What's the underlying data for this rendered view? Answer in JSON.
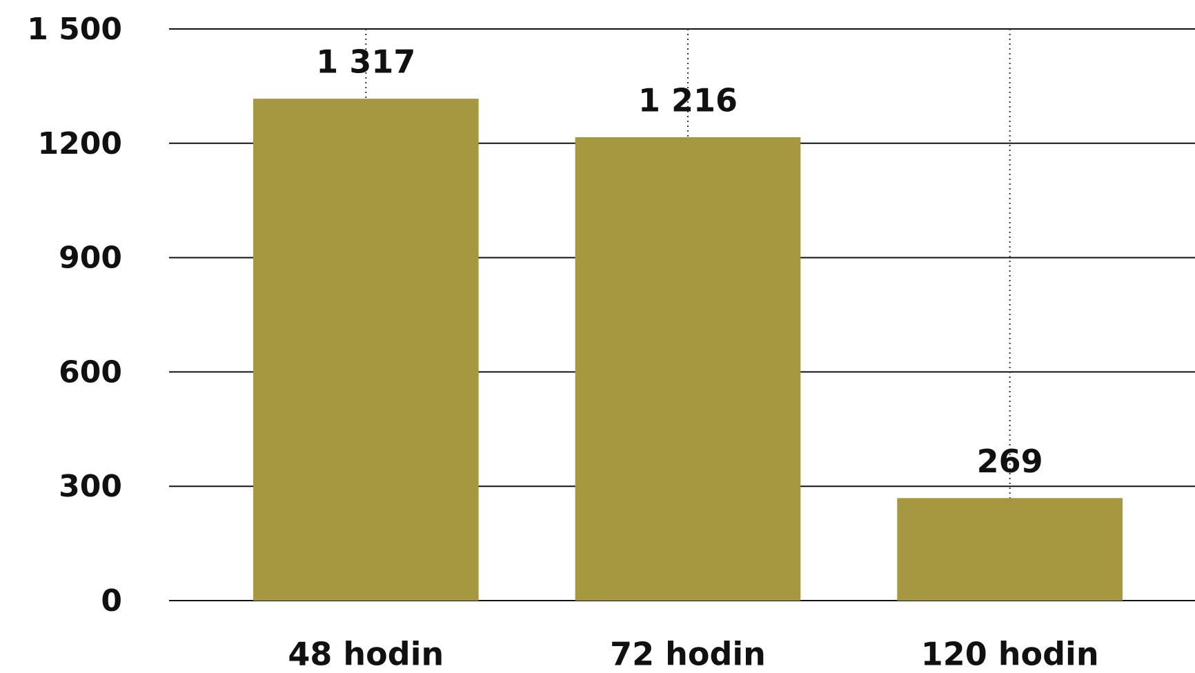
{
  "chart_data": {
    "type": "bar",
    "categories": [
      "48 hodin",
      "72 hodin",
      "120 hodin"
    ],
    "values": [
      1317,
      1216,
      269
    ],
    "value_labels": [
      "1 317",
      "1 216",
      "269"
    ],
    "color": "#a69840",
    "ylim": [
      0,
      1500
    ],
    "yticks": [
      0,
      300,
      600,
      900,
      1200,
      {
        "value": 1500,
        "label": "1 500"
      }
    ],
    "grid": true
  }
}
